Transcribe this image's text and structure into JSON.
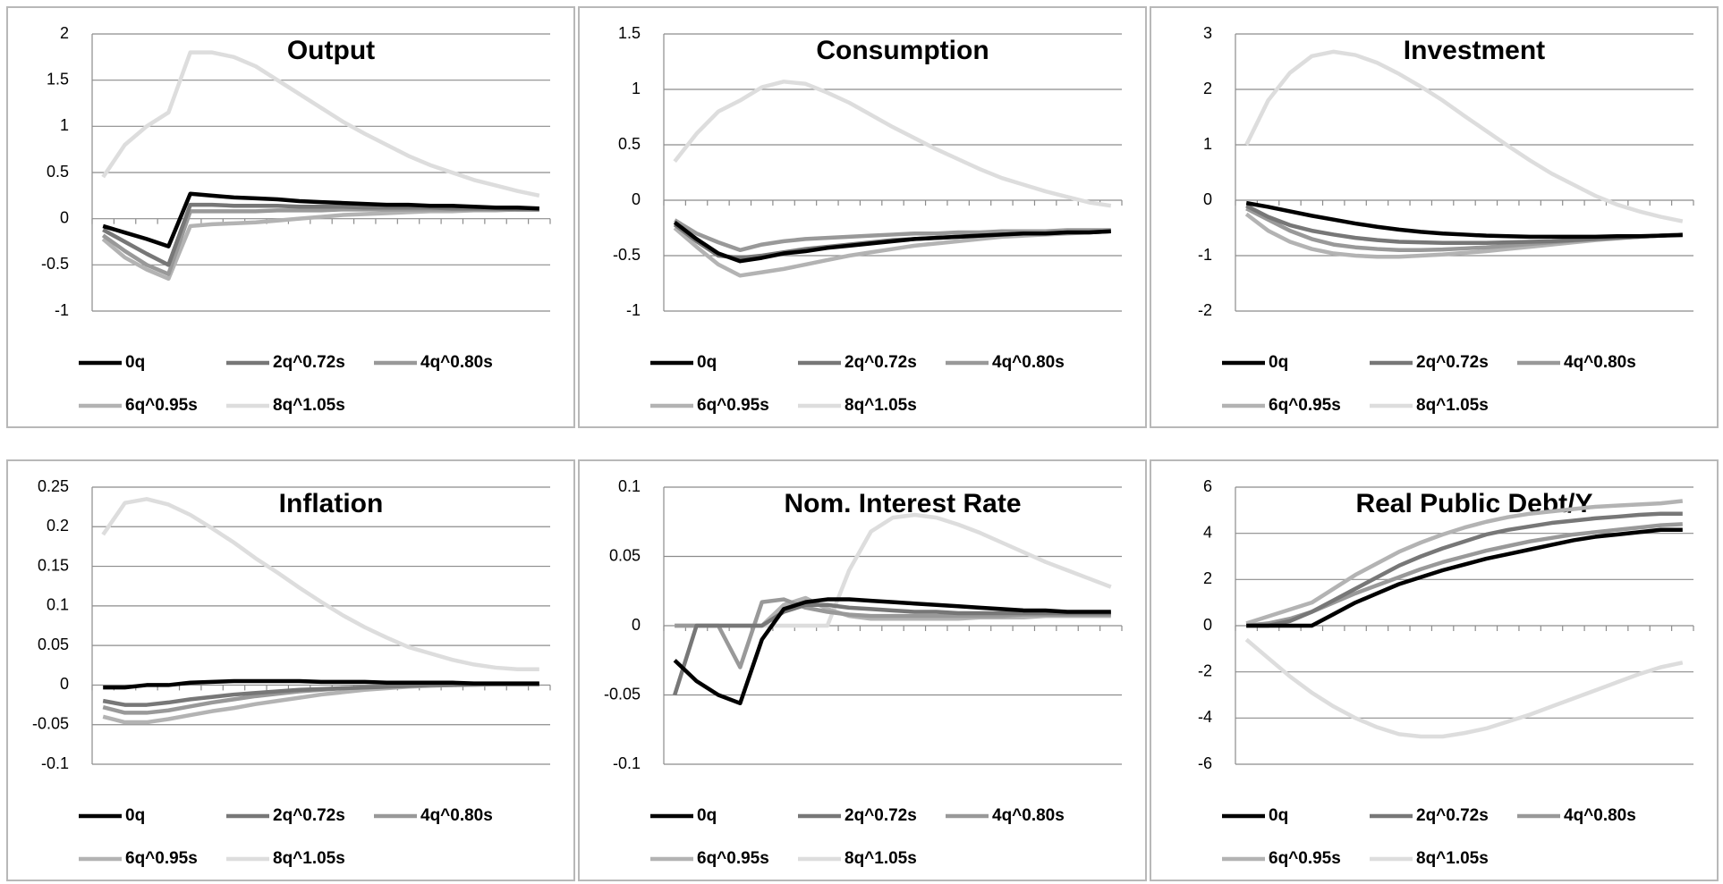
{
  "chart_data": [
    {
      "type": "line",
      "title": "Output",
      "categories": [
        null,
        null,
        null,
        null,
        null,
        null,
        null,
        null,
        null,
        null,
        null,
        null,
        null,
        null,
        null,
        null,
        null,
        null,
        null,
        null,
        null
      ],
      "ylim": [
        -1,
        2
      ],
      "yticks": [
        -1,
        -0.5,
        0,
        0.5,
        1,
        1.5,
        2
      ],
      "grid": true,
      "series": [
        {
          "name": "0q",
          "color": "#000000",
          "values": [
            -0.08,
            -0.15,
            -0.22,
            -0.3,
            0.27,
            0.25,
            0.23,
            0.22,
            0.21,
            0.19,
            0.18,
            0.17,
            0.16,
            0.15,
            0.15,
            0.14,
            0.14,
            0.13,
            0.12,
            0.12,
            0.11
          ]
        },
        {
          "name": "2q^0.72s",
          "color": "#777777",
          "values": [
            -0.12,
            -0.25,
            -0.38,
            -0.5,
            0.15,
            0.15,
            0.14,
            0.14,
            0.14,
            0.13,
            0.13,
            0.13,
            0.12,
            0.12,
            0.12,
            0.12,
            0.11,
            0.11,
            0.11,
            0.1,
            0.1
          ]
        },
        {
          "name": "4q^0.80s",
          "color": "#999999",
          "values": [
            -0.18,
            -0.35,
            -0.5,
            -0.6,
            0.08,
            0.08,
            0.08,
            0.08,
            0.09,
            0.09,
            0.09,
            0.1,
            0.1,
            0.1,
            0.1,
            0.1,
            0.1,
            0.1,
            0.1,
            0.1,
            0.1
          ]
        },
        {
          "name": "6q^0.95s",
          "color": "#b3b3b3",
          "values": [
            -0.22,
            -0.42,
            -0.55,
            -0.65,
            -0.08,
            -0.06,
            -0.05,
            -0.04,
            -0.02,
            0,
            0.02,
            0.04,
            0.05,
            0.06,
            0.07,
            0.08,
            0.08,
            0.09,
            0.09,
            0.1,
            0.1
          ]
        },
        {
          "name": "8q^1.05s",
          "color": "#dddddd",
          "values": [
            0.45,
            0.8,
            1.0,
            1.15,
            1.8,
            1.8,
            1.75,
            1.65,
            1.5,
            1.35,
            1.2,
            1.05,
            0.92,
            0.8,
            0.68,
            0.58,
            0.5,
            0.42,
            0.36,
            0.3,
            0.25
          ]
        }
      ]
    },
    {
      "type": "line",
      "title": "Consumption",
      "categories": [
        null,
        null,
        null,
        null,
        null,
        null,
        null,
        null,
        null,
        null,
        null,
        null,
        null,
        null,
        null,
        null,
        null,
        null,
        null,
        null,
        null
      ],
      "ylim": [
        -1,
        1.5
      ],
      "yticks": [
        -1,
        -0.5,
        0,
        0.5,
        1,
        1.5
      ],
      "grid": true,
      "series": [
        {
          "name": "0q",
          "color": "#000000",
          "values": [
            -0.2,
            -0.35,
            -0.48,
            -0.55,
            -0.52,
            -0.48,
            -0.46,
            -0.43,
            -0.41,
            -0.39,
            -0.37,
            -0.35,
            -0.34,
            -0.33,
            -0.32,
            -0.31,
            -0.3,
            -0.3,
            -0.29,
            -0.29,
            -0.28
          ]
        },
        {
          "name": "2q^0.72s",
          "color": "#777777",
          "values": [
            -0.22,
            -0.37,
            -0.5,
            -0.52,
            -0.5,
            -0.47,
            -0.44,
            -0.42,
            -0.4,
            -0.38,
            -0.36,
            -0.35,
            -0.34,
            -0.33,
            -0.32,
            -0.31,
            -0.3,
            -0.3,
            -0.29,
            -0.29,
            -0.28
          ]
        },
        {
          "name": "4q^0.80s",
          "color": "#999999",
          "values": [
            -0.18,
            -0.3,
            -0.38,
            -0.45,
            -0.4,
            -0.37,
            -0.35,
            -0.34,
            -0.33,
            -0.32,
            -0.31,
            -0.3,
            -0.3,
            -0.29,
            -0.29,
            -0.28,
            -0.28,
            -0.28,
            -0.27,
            -0.27,
            -0.27
          ]
        },
        {
          "name": "6q^0.95s",
          "color": "#b3b3b3",
          "values": [
            -0.25,
            -0.42,
            -0.58,
            -0.68,
            -0.65,
            -0.62,
            -0.58,
            -0.54,
            -0.5,
            -0.47,
            -0.44,
            -0.41,
            -0.39,
            -0.37,
            -0.35,
            -0.33,
            -0.32,
            -0.31,
            -0.3,
            -0.29,
            -0.28
          ]
        },
        {
          "name": "8q^1.05s",
          "color": "#dddddd",
          "values": [
            0.35,
            0.6,
            0.8,
            0.9,
            1.02,
            1.07,
            1.05,
            0.97,
            0.88,
            0.77,
            0.66,
            0.56,
            0.46,
            0.37,
            0.28,
            0.2,
            0.14,
            0.08,
            0.03,
            -0.02,
            -0.05
          ]
        }
      ]
    },
    {
      "type": "line",
      "title": "Investment",
      "categories": [
        null,
        null,
        null,
        null,
        null,
        null,
        null,
        null,
        null,
        null,
        null,
        null,
        null,
        null,
        null,
        null,
        null,
        null,
        null,
        null,
        null
      ],
      "ylim": [
        -2,
        3
      ],
      "yticks": [
        -2,
        -1,
        0,
        1,
        2,
        3
      ],
      "grid": true,
      "series": [
        {
          "name": "0q",
          "color": "#000000",
          "values": [
            -0.05,
            -0.12,
            -0.2,
            -0.28,
            -0.35,
            -0.42,
            -0.48,
            -0.53,
            -0.57,
            -0.6,
            -0.62,
            -0.64,
            -0.65,
            -0.66,
            -0.66,
            -0.66,
            -0.66,
            -0.65,
            -0.65,
            -0.64,
            -0.63
          ]
        },
        {
          "name": "2q^0.72s",
          "color": "#777777",
          "values": [
            -0.1,
            -0.3,
            -0.45,
            -0.55,
            -0.62,
            -0.68,
            -0.72,
            -0.75,
            -0.76,
            -0.77,
            -0.77,
            -0.77,
            -0.76,
            -0.75,
            -0.74,
            -0.72,
            -0.7,
            -0.68,
            -0.66,
            -0.64,
            -0.62
          ]
        },
        {
          "name": "4q^0.80s",
          "color": "#999999",
          "values": [
            -0.15,
            -0.35,
            -0.55,
            -0.7,
            -0.8,
            -0.85,
            -0.88,
            -0.9,
            -0.9,
            -0.89,
            -0.87,
            -0.85,
            -0.82,
            -0.79,
            -0.76,
            -0.73,
            -0.7,
            -0.68,
            -0.66,
            -0.64,
            -0.62
          ]
        },
        {
          "name": "6q^0.95s",
          "color": "#b3b3b3",
          "values": [
            -0.25,
            -0.55,
            -0.75,
            -0.88,
            -0.96,
            -1.0,
            -1.02,
            -1.02,
            -1.0,
            -0.98,
            -0.95,
            -0.92,
            -0.88,
            -0.84,
            -0.8,
            -0.76,
            -0.72,
            -0.69,
            -0.66,
            -0.64,
            -0.62
          ]
        },
        {
          "name": "8q^1.05s",
          "color": "#dddddd",
          "values": [
            1.0,
            1.8,
            2.3,
            2.6,
            2.68,
            2.62,
            2.48,
            2.28,
            2.05,
            1.8,
            1.52,
            1.25,
            0.98,
            0.72,
            0.48,
            0.28,
            0.08,
            -0.08,
            -0.2,
            -0.3,
            -0.38
          ]
        }
      ]
    },
    {
      "type": "line",
      "title": "Inflation",
      "categories": [
        null,
        null,
        null,
        null,
        null,
        null,
        null,
        null,
        null,
        null,
        null,
        null,
        null,
        null,
        null,
        null,
        null,
        null,
        null,
        null,
        null
      ],
      "ylim": [
        -0.1,
        0.25
      ],
      "yticks": [
        -0.1,
        -0.05,
        0,
        0.05,
        0.1,
        0.15,
        0.2,
        0.25
      ],
      "grid": true,
      "series": [
        {
          "name": "0q",
          "color": "#000000",
          "values": [
            -0.003,
            -0.003,
            0,
            0,
            0.003,
            0.004,
            0.005,
            0.005,
            0.005,
            0.005,
            0.004,
            0.004,
            0.004,
            0.003,
            0.003,
            0.003,
            0.003,
            0.002,
            0.002,
            0.002,
            0.002
          ]
        },
        {
          "name": "2q^0.72s",
          "color": "#777777",
          "values": [
            -0.02,
            -0.025,
            -0.025,
            -0.022,
            -0.018,
            -0.015,
            -0.012,
            -0.01,
            -0.008,
            -0.006,
            -0.005,
            -0.004,
            -0.003,
            -0.002,
            -0.001,
            0,
            0,
            0.001,
            0.001,
            0.001,
            0.001
          ]
        },
        {
          "name": "4q^0.80s",
          "color": "#999999",
          "values": [
            -0.028,
            -0.035,
            -0.035,
            -0.032,
            -0.027,
            -0.022,
            -0.018,
            -0.014,
            -0.011,
            -0.008,
            -0.006,
            -0.004,
            -0.003,
            -0.002,
            -0.001,
            0,
            0,
            0.001,
            0.001,
            0.001,
            0.001
          ]
        },
        {
          "name": "6q^0.95s",
          "color": "#b3b3b3",
          "values": [
            -0.04,
            -0.047,
            -0.047,
            -0.043,
            -0.038,
            -0.033,
            -0.029,
            -0.024,
            -0.02,
            -0.016,
            -0.012,
            -0.009,
            -0.006,
            -0.004,
            -0.002,
            -0.001,
            0,
            0,
            0.001,
            0.001,
            0.001
          ]
        },
        {
          "name": "8q^1.05s",
          "color": "#dddddd",
          "values": [
            0.19,
            0.23,
            0.235,
            0.228,
            0.215,
            0.198,
            0.18,
            0.16,
            0.142,
            0.123,
            0.105,
            0.088,
            0.073,
            0.06,
            0.048,
            0.04,
            0.032,
            0.026,
            0.022,
            0.02,
            0.02
          ]
        }
      ]
    },
    {
      "type": "line",
      "title": "Nom. Interest Rate",
      "categories": [
        null,
        null,
        null,
        null,
        null,
        null,
        null,
        null,
        null,
        null,
        null,
        null,
        null,
        null,
        null,
        null,
        null,
        null,
        null,
        null,
        null
      ],
      "ylim": [
        -0.1,
        0.1
      ],
      "yticks": [
        -0.1,
        -0.05,
        0,
        0.05,
        0.1
      ],
      "grid": true,
      "series": [
        {
          "name": "0q",
          "color": "#000000",
          "values": [
            -0.025,
            -0.04,
            -0.05,
            -0.056,
            -0.01,
            0.012,
            0.017,
            0.019,
            0.019,
            0.018,
            0.017,
            0.016,
            0.015,
            0.014,
            0.013,
            0.012,
            0.011,
            0.011,
            0.01,
            0.01,
            0.01
          ]
        },
        {
          "name": "2q^0.72s",
          "color": "#777777",
          "values": [
            -0.05,
            0,
            0,
            0,
            0,
            0.01,
            0.015,
            0.015,
            0.013,
            0.012,
            0.011,
            0.01,
            0.01,
            0.009,
            0.009,
            0.009,
            0.009,
            0.009,
            0.009,
            0.009,
            0.009
          ]
        },
        {
          "name": "4q^0.80s",
          "color": "#999999",
          "values": [
            0,
            0,
            0,
            -0.03,
            0.017,
            0.019,
            0.013,
            0.01,
            0.008,
            0.007,
            0.007,
            0.007,
            0.007,
            0.007,
            0.007,
            0.007,
            0.008,
            0.008,
            0.008,
            0.008,
            0.008
          ]
        },
        {
          "name": "6q^0.95s",
          "color": "#b3b3b3",
          "values": [
            0,
            0,
            0,
            0,
            0,
            0.015,
            0.02,
            0.012,
            0.007,
            0.005,
            0.005,
            0.005,
            0.005,
            0.005,
            0.006,
            0.006,
            0.006,
            0.007,
            0.007,
            0.007,
            0.007
          ]
        },
        {
          "name": "8q^1.05s",
          "color": "#dddddd",
          "values": [
            0,
            0,
            0,
            0,
            0,
            0,
            0,
            0,
            0.04,
            0.068,
            0.078,
            0.08,
            0.078,
            0.073,
            0.067,
            0.06,
            0.053,
            0.046,
            0.04,
            0.034,
            0.028
          ]
        }
      ]
    },
    {
      "type": "line",
      "title": "Real Public Debt/Y",
      "categories": [
        null,
        null,
        null,
        null,
        null,
        null,
        null,
        null,
        null,
        null,
        null,
        null,
        null,
        null,
        null,
        null,
        null,
        null,
        null,
        null,
        null
      ],
      "ylim": [
        -6,
        6
      ],
      "yticks": [
        -6,
        -4,
        -2,
        0,
        2,
        4,
        6
      ],
      "grid": true,
      "series": [
        {
          "name": "0q",
          "color": "#000000",
          "values": [
            0,
            0,
            0,
            0,
            0.5,
            1.0,
            1.4,
            1.8,
            2.1,
            2.4,
            2.65,
            2.9,
            3.1,
            3.3,
            3.5,
            3.7,
            3.85,
            3.95,
            4.05,
            4.15,
            4.15
          ]
        },
        {
          "name": "2q^0.72s",
          "color": "#777777",
          "values": [
            0,
            0,
            0.2,
            0.6,
            1.1,
            1.6,
            2.1,
            2.6,
            3.0,
            3.35,
            3.65,
            3.95,
            4.15,
            4.3,
            4.45,
            4.55,
            4.65,
            4.72,
            4.8,
            4.85,
            4.85
          ]
        },
        {
          "name": "4q^0.80s",
          "color": "#999999",
          "values": [
            0,
            0.1,
            0.3,
            0.6,
            1.0,
            1.4,
            1.75,
            2.1,
            2.45,
            2.75,
            3.0,
            3.25,
            3.45,
            3.65,
            3.8,
            3.95,
            4.05,
            4.15,
            4.25,
            4.35,
            4.4
          ]
        },
        {
          "name": "6q^0.95s",
          "color": "#b3b3b3",
          "values": [
            0.1,
            0.4,
            0.7,
            1.0,
            1.6,
            2.2,
            2.7,
            3.2,
            3.6,
            3.95,
            4.25,
            4.5,
            4.7,
            4.85,
            4.95,
            5.05,
            5.15,
            5.2,
            5.25,
            5.3,
            5.4
          ]
        },
        {
          "name": "8q^1.05s",
          "color": "#dddddd",
          "values": [
            -0.6,
            -1.4,
            -2.2,
            -2.9,
            -3.5,
            -4.0,
            -4.4,
            -4.7,
            -4.8,
            -4.8,
            -4.65,
            -4.45,
            -4.15,
            -3.85,
            -3.5,
            -3.15,
            -2.8,
            -2.45,
            -2.1,
            -1.8,
            -1.6
          ]
        }
      ]
    }
  ]
}
